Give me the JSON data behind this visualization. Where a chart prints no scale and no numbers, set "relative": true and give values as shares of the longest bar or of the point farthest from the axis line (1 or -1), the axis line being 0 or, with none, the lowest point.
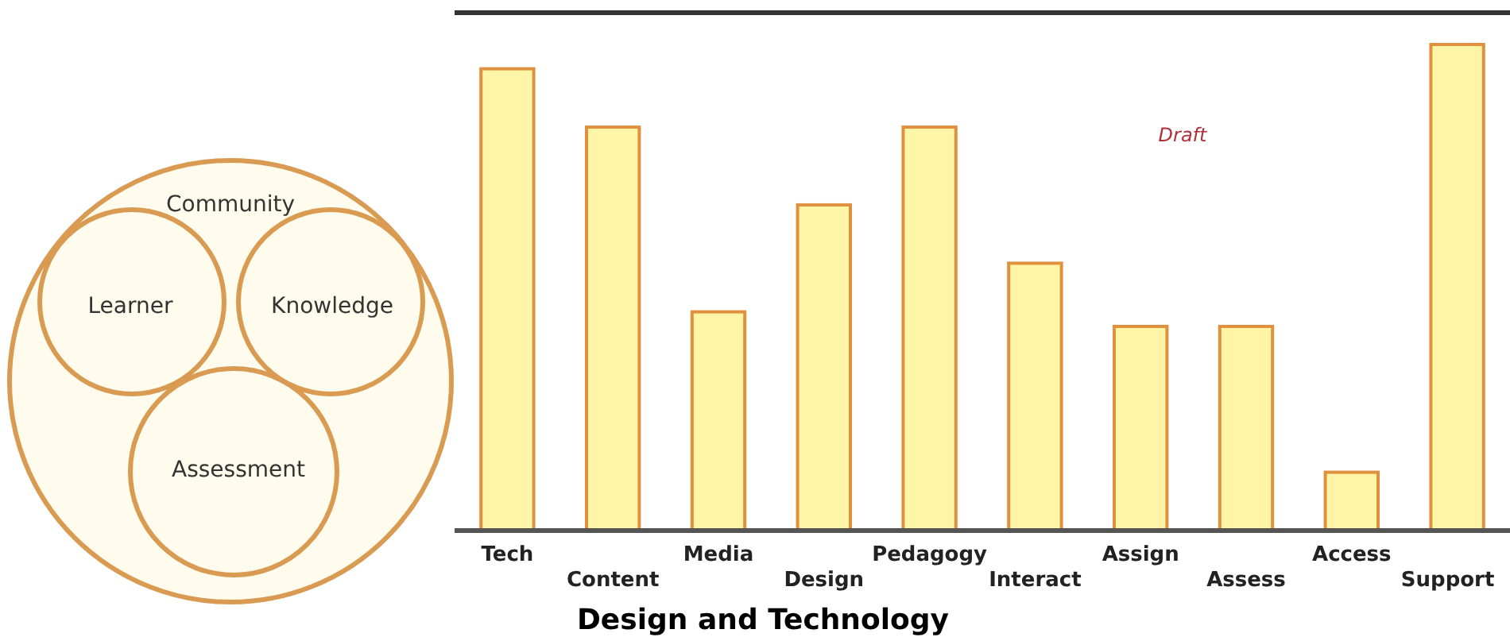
{
  "chart_data": {
    "type": "bar",
    "relative": true,
    "xlabel": "Design and Technology",
    "categories": [
      "Tech",
      "Content",
      "Media",
      "Design",
      "Pedagogy",
      "Interact",
      "Assign",
      "Assess",
      "Access",
      "Support"
    ],
    "values": [
      0.95,
      0.83,
      0.45,
      0.67,
      0.83,
      0.55,
      0.42,
      0.42,
      0.12,
      1
    ],
    "color": "#fff5a6",
    "annotations": [
      "Draft",
      "Community",
      "Learner",
      "Knowledge",
      "Assessment"
    ]
  }
}
